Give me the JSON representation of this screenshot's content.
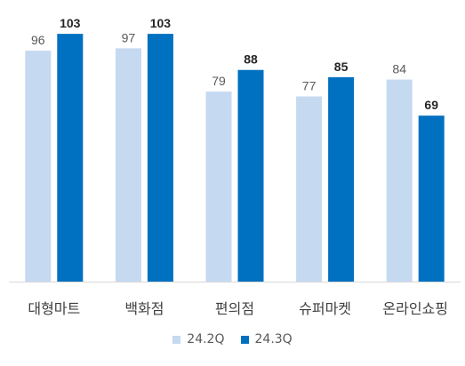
{
  "chart_data": {
    "type": "bar",
    "categories": [
      "대형마트",
      "백화점",
      "편의점",
      "슈퍼마켓",
      "온라인쇼핑"
    ],
    "series": [
      {
        "name": "24.2Q",
        "values": [
          96,
          97,
          79,
          77,
          84
        ],
        "color": "#c5d9f1",
        "label_color": "#595959",
        "label_bold": false
      },
      {
        "name": "24.3Q",
        "values": [
          103,
          103,
          88,
          85,
          69
        ],
        "color": "#0070c0",
        "label_color": "#262626",
        "label_bold": true
      }
    ],
    "ylim": [
      0,
      106
    ],
    "grid": false,
    "legend_position": "bottom-center",
    "title": "",
    "xlabel": "",
    "ylabel": ""
  }
}
